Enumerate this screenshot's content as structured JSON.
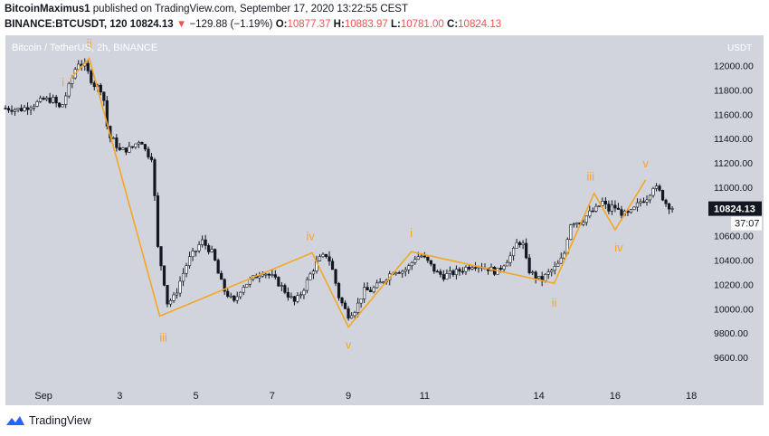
{
  "header": {
    "publisher": "BitcoinMaximus1",
    "published_text": "published on TradingView.com, September 17, 2020 13:22:55 CEST",
    "symbol": "BINANCE:BTCUSDT, 120",
    "last": "10824.13",
    "change_arrow": "▼",
    "change": "−129.88 (−1.19%)",
    "o_label": "O:",
    "o_value": "10877.37",
    "h_label": "H:",
    "h_value": "10883.97",
    "l_label": "L:",
    "l_value": "10781.00",
    "c_label": "C:",
    "c_value": "10824.13"
  },
  "footer": {
    "brand": "TradingView"
  },
  "colors": {
    "background": "#d1d4dc",
    "candle": "#131722",
    "wave": "#f5a623",
    "price_tag": "#131722",
    "axis_text": "#131722"
  },
  "chart_data": {
    "type": "candlestick",
    "title": "Bitcoin / TetherUS, 2h, BINANCE",
    "currency_label": "USDT",
    "ylim": [
      9400,
      12250
    ],
    "y_ticks": [
      9600,
      9800,
      10000,
      10200,
      10400,
      10600,
      10800,
      11000,
      11200,
      11400,
      11600,
      11800,
      12000
    ],
    "y_tick_labels": [
      "9600.00",
      "9800.00",
      "10000.00",
      "10200.00",
      "10400.00",
      "10600.00",
      "10800.00",
      "11000.00",
      "11200.00",
      "11400.00",
      "11600.00",
      "11800.00",
      "12000.00"
    ],
    "x_range_days": [
      0,
      17.55
    ],
    "x_ticks": [
      {
        "day": 1,
        "label": "Sep"
      },
      {
        "day": 3,
        "label": "3"
      },
      {
        "day": 5,
        "label": "5"
      },
      {
        "day": 7,
        "label": "7"
      },
      {
        "day": 9,
        "label": "9"
      },
      {
        "day": 11,
        "label": "11"
      },
      {
        "day": 14,
        "label": "14"
      },
      {
        "day": 16,
        "label": "16"
      },
      {
        "day": 18,
        "label": "18"
      }
    ],
    "price_path": [
      [
        0.0,
        11650
      ],
      [
        0.4,
        11640
      ],
      [
        0.8,
        11690
      ],
      [
        1.0,
        11720
      ],
      [
        1.25,
        11720
      ],
      [
        1.45,
        11640
      ],
      [
        1.75,
        11900
      ],
      [
        1.9,
        12030
      ],
      [
        2.1,
        11990
      ],
      [
        2.3,
        11850
      ],
      [
        2.55,
        11800
      ],
      [
        2.7,
        11420
      ],
      [
        2.85,
        11380
      ],
      [
        3.0,
        11300
      ],
      [
        3.3,
        11320
      ],
      [
        3.55,
        11400
      ],
      [
        3.7,
        11280
      ],
      [
        3.85,
        11250
      ],
      [
        4.0,
        10500
      ],
      [
        4.15,
        10250
      ],
      [
        4.25,
        10050
      ],
      [
        4.45,
        10100
      ],
      [
        4.55,
        10200
      ],
      [
        4.8,
        10400
      ],
      [
        5.0,
        10480
      ],
      [
        5.15,
        10560
      ],
      [
        5.45,
        10450
      ],
      [
        5.6,
        10270
      ],
      [
        5.75,
        10150
      ],
      [
        6.0,
        10050
      ],
      [
        6.2,
        10180
      ],
      [
        6.5,
        10250
      ],
      [
        6.75,
        10310
      ],
      [
        7.0,
        10260
      ],
      [
        7.2,
        10200
      ],
      [
        7.4,
        10120
      ],
      [
        7.6,
        10050
      ],
      [
        7.8,
        10150
      ],
      [
        8.0,
        10280
      ],
      [
        8.2,
        10400
      ],
      [
        8.45,
        10450
      ],
      [
        8.6,
        10300
      ],
      [
        8.75,
        10100
      ],
      [
        8.9,
        10000
      ],
      [
        9.0,
        9950
      ],
      [
        9.2,
        10000
      ],
      [
        9.4,
        10150
      ],
      [
        9.6,
        10150
      ],
      [
        9.8,
        10200
      ],
      [
        10.0,
        10260
      ],
      [
        10.2,
        10320
      ],
      [
        10.4,
        10310
      ],
      [
        10.55,
        10330
      ],
      [
        10.75,
        10420
      ],
      [
        10.9,
        10440
      ],
      [
        11.1,
        10380
      ],
      [
        11.3,
        10300
      ],
      [
        11.5,
        10270
      ],
      [
        11.7,
        10290
      ],
      [
        11.9,
        10310
      ],
      [
        12.1,
        10340
      ],
      [
        12.3,
        10370
      ],
      [
        12.5,
        10350
      ],
      [
        12.7,
        10330
      ],
      [
        12.9,
        10300
      ],
      [
        13.1,
        10380
      ],
      [
        13.3,
        10450
      ],
      [
        13.45,
        10560
      ],
      [
        13.6,
        10520
      ],
      [
        13.7,
        10330
      ],
      [
        13.85,
        10280
      ],
      [
        14.05,
        10230
      ],
      [
        14.2,
        10280
      ],
      [
        14.4,
        10330
      ],
      [
        14.55,
        10380
      ],
      [
        14.7,
        10480
      ],
      [
        14.8,
        10700
      ],
      [
        14.95,
        10720
      ],
      [
        15.1,
        10710
      ],
      [
        15.3,
        10780
      ],
      [
        15.5,
        10820
      ],
      [
        15.7,
        10890
      ],
      [
        15.8,
        10800
      ],
      [
        15.95,
        10850
      ],
      [
        16.1,
        10800
      ],
      [
        16.3,
        10770
      ],
      [
        16.45,
        10800
      ],
      [
        16.65,
        10880
      ],
      [
        16.85,
        10920
      ],
      [
        17.0,
        11010
      ],
      [
        17.15,
        10970
      ],
      [
        17.35,
        10860
      ],
      [
        17.55,
        10824
      ]
    ],
    "last_price": "10824.13",
    "countdown": "37:07",
    "elliott_wave": [
      {
        "day": 1.7,
        "price": 11890,
        "label": "i"
      },
      {
        "day": 2.2,
        "price": 12060,
        "label": "ii"
      },
      {
        "day": 4.05,
        "price": 9940,
        "label": "iii"
      },
      {
        "day": 8.05,
        "price": 10460,
        "label": "iv"
      },
      {
        "day": 9.0,
        "price": 9850,
        "label": "v"
      },
      {
        "day": 10.65,
        "price": 10470,
        "label": "i"
      },
      {
        "day": 14.4,
        "price": 10210,
        "label": "ii"
      },
      {
        "day": 15.45,
        "price": 10950,
        "label": "iii"
      },
      {
        "day": 16.0,
        "price": 10650,
        "label": "iv"
      },
      {
        "day": 16.8,
        "price": 11060,
        "label": "v"
      }
    ]
  }
}
